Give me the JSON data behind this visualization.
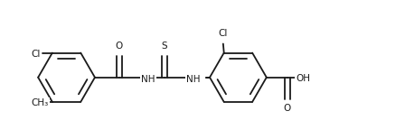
{
  "bg_color": "#ffffff",
  "line_color": "#1a1a1a",
  "line_width": 1.3,
  "font_size": 7.5,
  "figsize": [
    4.48,
    1.54
  ],
  "dpi": 100,
  "xlim": [
    0,
    10
  ],
  "ylim": [
    0,
    3.5
  ]
}
